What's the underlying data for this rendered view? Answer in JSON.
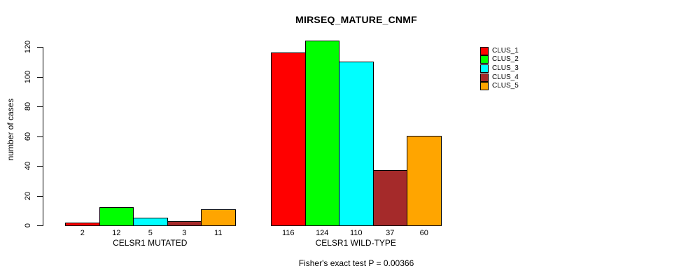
{
  "chart_data": {
    "type": "bar",
    "title": "MIRSEQ_MATURE_CNMF",
    "ylabel": "number of cases",
    "xlabel": "",
    "ylim": [
      0,
      120
    ],
    "yticks": [
      0,
      20,
      40,
      60,
      80,
      100,
      120
    ],
    "grid": false,
    "legend_position": "top-right",
    "categories": [
      "CELSR1 MUTATED",
      "CELSR1 WILD-TYPE"
    ],
    "series": [
      {
        "name": "CLUS_1",
        "color": "#ff0000",
        "values": [
          2,
          116
        ]
      },
      {
        "name": "CLUS_2",
        "color": "#00ff00",
        "values": [
          12,
          124
        ]
      },
      {
        "name": "CLUS_3",
        "color": "#00ffff",
        "values": [
          5,
          110
        ]
      },
      {
        "name": "CLUS_4",
        "color": "#a52a2a",
        "values": [
          3,
          37
        ]
      },
      {
        "name": "CLUS_5",
        "color": "#ffa500",
        "values": [
          11,
          60
        ]
      }
    ],
    "bar_value_labels": [
      [
        "2",
        "12",
        "5",
        "3",
        "11"
      ],
      [
        "116",
        "124",
        "110",
        "37",
        "60"
      ]
    ],
    "annotation": "Fisher's exact test P = 0.00366"
  }
}
